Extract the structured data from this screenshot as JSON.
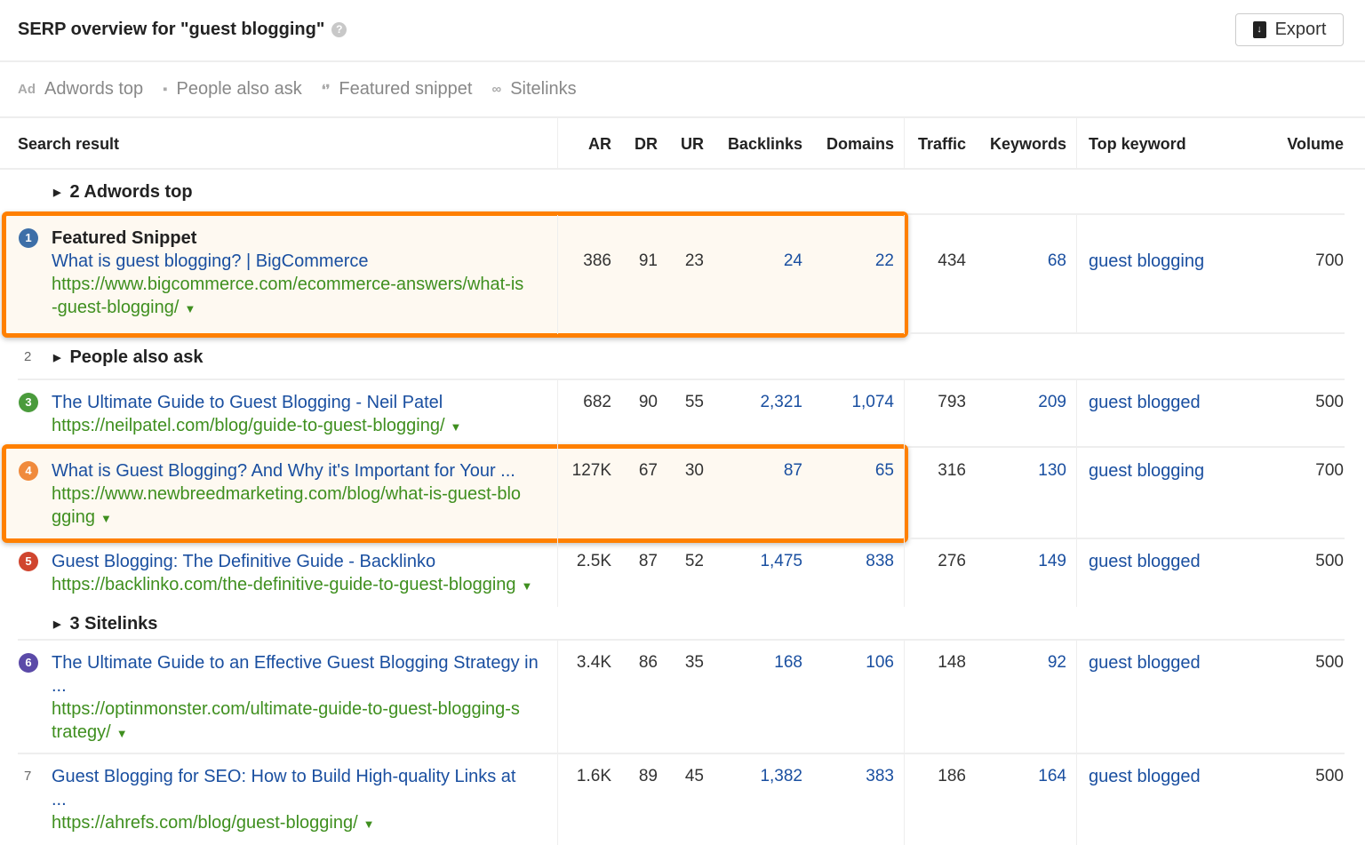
{
  "header": {
    "title": "SERP overview for \"guest blogging\"",
    "help_icon": "question-circle-icon",
    "export_label": "Export"
  },
  "filters": [
    {
      "icon": "ad-icon",
      "label": "Adwords top"
    },
    {
      "icon": "question-bubble-icon",
      "label": "People also ask"
    },
    {
      "icon": "quote-icon",
      "label": "Featured snippet"
    },
    {
      "icon": "link-icon",
      "label": "Sitelinks"
    }
  ],
  "columns": {
    "search_result": "Search result",
    "ar": "AR",
    "dr": "DR",
    "ur": "UR",
    "backlinks": "Backlinks",
    "domains": "Domains",
    "traffic": "Traffic",
    "keywords": "Keywords",
    "top_keyword": "Top keyword",
    "volume": "Volume"
  },
  "groups": {
    "adwords": "2 Adwords top",
    "paa_num": "2",
    "paa": "People also ask",
    "sitelinks": "3 Sitelinks"
  },
  "featured_label": "Featured Snippet",
  "ellipsis": "...",
  "colors": {
    "highlight": "#ff8000",
    "link": "#1a4fa0",
    "url": "#3f8f1f"
  },
  "rows": [
    {
      "pos": "1",
      "color": "#3d6fa8",
      "title": "What is guest blogging? | BigCommerce",
      "url1": "https://www.bigcommerce.com/ecommerce-answers/what-is",
      "url2": "-guest-blogging/",
      "ar": "386",
      "dr": "91",
      "ur": "23",
      "backlinks": "24",
      "domains": "22",
      "traffic": "434",
      "keywords": "68",
      "top_keyword": "guest blogging",
      "volume": "700"
    },
    {
      "pos": "3",
      "color": "#4a9b3c",
      "title": "The Ultimate Guide to Guest Blogging - Neil Patel",
      "url1": "https://neilpatel.com/blog/guide-to-guest-blogging/",
      "ar": "682",
      "dr": "90",
      "ur": "55",
      "backlinks": "2,321",
      "domains": "1,074",
      "traffic": "793",
      "keywords": "209",
      "top_keyword": "guest blogged",
      "volume": "500"
    },
    {
      "pos": "4",
      "color": "#f08a3c",
      "title": "What is Guest Blogging? And Why it's Important for Your ...",
      "url1": "https://www.newbreedmarketing.com/blog/what-is-guest-blo",
      "url2": "gging",
      "ar": "127K",
      "dr": "67",
      "ur": "30",
      "backlinks": "87",
      "domains": "65",
      "traffic": "316",
      "keywords": "130",
      "top_keyword": "guest blogging",
      "volume": "700"
    },
    {
      "pos": "5",
      "color": "#d0452f",
      "title": "Guest Blogging: The Definitive Guide - Backlinko",
      "url1": "https://backlinko.com/the-definitive-guide-to-guest-blogging",
      "ar": "2.5K",
      "dr": "87",
      "ur": "52",
      "backlinks": "1,475",
      "domains": "838",
      "traffic": "276",
      "keywords": "149",
      "top_keyword": "guest blogged",
      "volume": "500"
    },
    {
      "pos": "6",
      "color": "#5b4aa8",
      "title": "The Ultimate Guide to an Effective Guest Blogging Strategy in",
      "url1": "https://optinmonster.com/ultimate-guide-to-guest-blogging-s",
      "url2": "trategy/",
      "ar": "3.4K",
      "dr": "86",
      "ur": "35",
      "backlinks": "168",
      "domains": "106",
      "traffic": "148",
      "keywords": "92",
      "top_keyword": "guest blogged",
      "volume": "500"
    },
    {
      "pos": "7",
      "title": "Guest Blogging for SEO: How to Build High-quality Links at",
      "url1": "https://ahrefs.com/blog/guest-blogging/",
      "ar": "1.6K",
      "dr": "89",
      "ur": "45",
      "backlinks": "1,382",
      "domains": "383",
      "traffic": "186",
      "keywords": "164",
      "top_keyword": "guest blogged",
      "volume": "500"
    }
  ]
}
